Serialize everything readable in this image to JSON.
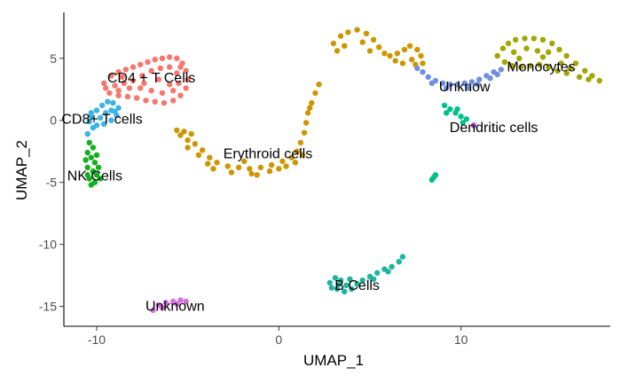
{
  "chart_data": {
    "type": "scatter",
    "title": "",
    "xlabel": "UMAP_1",
    "ylabel": "UMAP_2",
    "xlim": [
      -11.8,
      18.2
    ],
    "ylim": [
      -16.6,
      8.7
    ],
    "x_ticks": [
      -10,
      0,
      10
    ],
    "y_ticks": [
      5,
      0,
      -5,
      -10,
      -15
    ],
    "x_tick_labels": [
      "-10",
      "0",
      "10"
    ],
    "y_tick_labels": [
      "5",
      "0",
      "-5",
      "-10",
      "-15"
    ],
    "grid": false,
    "legend": "none",
    "clusters": [
      {
        "label": "CD4 + T Cells",
        "color": "#f8766d",
        "label_pos": [
          -7.0,
          3.4
        ],
        "points": [
          [
            -9.6,
            3.0
          ],
          [
            -9.2,
            3.6
          ],
          [
            -8.8,
            3.9
          ],
          [
            -8.4,
            4.1
          ],
          [
            -8.0,
            4.3
          ],
          [
            -7.6,
            4.5
          ],
          [
            -7.2,
            4.7
          ],
          [
            -6.8,
            4.9
          ],
          [
            -6.4,
            5.0
          ],
          [
            -6.0,
            5.1
          ],
          [
            -5.6,
            5.0
          ],
          [
            -5.3,
            4.6
          ],
          [
            -5.1,
            4.0
          ],
          [
            -5.0,
            3.3
          ],
          [
            -5.1,
            2.6
          ],
          [
            -5.4,
            2.0
          ],
          [
            -5.8,
            1.6
          ],
          [
            -6.3,
            1.4
          ],
          [
            -6.8,
            1.5
          ],
          [
            -7.3,
            1.6
          ],
          [
            -7.8,
            1.8
          ],
          [
            -8.3,
            1.9
          ],
          [
            -8.8,
            2.0
          ],
          [
            -9.3,
            2.2
          ],
          [
            -9.5,
            2.6
          ],
          [
            -9.0,
            2.8
          ],
          [
            -8.5,
            3.0
          ],
          [
            -8.0,
            3.2
          ],
          [
            -7.5,
            3.6
          ],
          [
            -7.0,
            4.0
          ],
          [
            -6.5,
            4.2
          ],
          [
            -6.0,
            4.3
          ],
          [
            -5.6,
            3.8
          ],
          [
            -5.5,
            3.0
          ],
          [
            -5.8,
            2.4
          ],
          [
            -6.4,
            2.2
          ],
          [
            -7.0,
            2.4
          ],
          [
            -7.6,
            2.6
          ],
          [
            -8.2,
            2.6
          ],
          [
            -8.8,
            2.4
          ],
          [
            -6.6,
            3.3
          ],
          [
            -7.4,
            3.0
          ],
          [
            -6.0,
            2.9
          ],
          [
            -5.4,
            4.3
          ],
          [
            -8.6,
            3.5
          ]
        ]
      },
      {
        "label": "CD8+ T cells",
        "color": "#39b4e6",
        "label_pos": [
          -9.7,
          0.1
        ],
        "points": [
          [
            -10.3,
            0.3
          ],
          [
            -10.0,
            0.8
          ],
          [
            -9.7,
            1.2
          ],
          [
            -9.4,
            1.5
          ],
          [
            -9.1,
            1.4
          ],
          [
            -8.8,
            1.0
          ],
          [
            -8.9,
            0.4
          ],
          [
            -9.2,
            0.0
          ],
          [
            -9.6,
            -0.3
          ],
          [
            -10.0,
            -0.4
          ],
          [
            -10.4,
            -0.1
          ],
          [
            -9.5,
            0.6
          ],
          [
            -9.2,
            0.8
          ],
          [
            -9.8,
            0.2
          ],
          [
            -10.2,
            -0.6
          ],
          [
            -10.5,
            -1.1
          ],
          [
            -10.3,
            0.6
          ],
          [
            -9.0,
            0.7
          ]
        ]
      },
      {
        "label": "NK Cells",
        "color": "#12b01e",
        "label_pos": [
          -10.1,
          -4.5
        ],
        "points": [
          [
            -10.4,
            -1.8
          ],
          [
            -10.2,
            -2.2
          ],
          [
            -10.5,
            -2.6
          ],
          [
            -10.3,
            -3.0
          ],
          [
            -10.1,
            -3.4
          ],
          [
            -10.5,
            -3.8
          ],
          [
            -10.2,
            -4.1
          ],
          [
            -10.0,
            -4.4
          ],
          [
            -10.4,
            -4.7
          ],
          [
            -10.1,
            -5.0
          ],
          [
            -10.3,
            -5.2
          ],
          [
            -9.9,
            -3.8
          ],
          [
            -10.6,
            -3.2
          ],
          [
            -10.0,
            -2.8
          ],
          [
            -10.5,
            -4.4
          ],
          [
            -9.8,
            -4.7
          ]
        ]
      },
      {
        "label": "Erythroid cells",
        "color": "#cd9600",
        "label_pos": [
          -0.6,
          -2.7
        ],
        "points": [
          [
            -5.4,
            -1.2
          ],
          [
            -5.0,
            -1.6
          ],
          [
            -4.6,
            -1.9
          ],
          [
            -4.2,
            -2.4
          ],
          [
            -3.8,
            -3.0
          ],
          [
            -3.4,
            -3.4
          ],
          [
            -2.8,
            -3.7
          ],
          [
            -2.2,
            -3.8
          ],
          [
            -1.6,
            -3.9
          ],
          [
            -1.0,
            -3.8
          ],
          [
            -0.4,
            -3.6
          ],
          [
            0.2,
            -3.3
          ],
          [
            0.7,
            -3.0
          ],
          [
            1.0,
            -2.5
          ],
          [
            1.2,
            -1.8
          ],
          [
            1.4,
            -1.0
          ],
          [
            1.5,
            -0.2
          ],
          [
            1.6,
            0.6
          ],
          [
            1.8,
            1.4
          ],
          [
            2.0,
            2.2
          ],
          [
            2.2,
            2.9
          ],
          [
            -4.4,
            -2.8
          ],
          [
            -3.6,
            -3.9
          ],
          [
            -2.6,
            -4.2
          ],
          [
            -1.5,
            -4.3
          ],
          [
            -0.5,
            -4.1
          ],
          [
            0.4,
            -3.7
          ],
          [
            0.9,
            -3.4
          ],
          [
            1.3,
            -2.8
          ],
          [
            -5.0,
            -2.2
          ],
          [
            -4.8,
            -1.1
          ],
          [
            -3.9,
            -3.5
          ],
          [
            -1.9,
            -3.3
          ],
          [
            0.0,
            -3.9
          ],
          [
            1.7,
            1.0
          ],
          [
            3.0,
            6.2
          ],
          [
            3.4,
            6.8
          ],
          [
            3.8,
            7.1
          ],
          [
            4.3,
            7.3
          ],
          [
            4.8,
            7.0
          ],
          [
            5.2,
            6.5
          ],
          [
            5.5,
            5.9
          ],
          [
            5.8,
            5.4
          ],
          [
            6.1,
            5.2
          ],
          [
            6.5,
            5.4
          ],
          [
            6.9,
            5.7
          ],
          [
            7.2,
            6.0
          ],
          [
            7.6,
            5.7
          ],
          [
            7.8,
            5.2
          ],
          [
            7.9,
            4.6
          ],
          [
            6.4,
            4.8
          ],
          [
            6.8,
            4.6
          ],
          [
            7.3,
            4.9
          ],
          [
            5.0,
            5.6
          ],
          [
            4.6,
            6.3
          ],
          [
            3.6,
            6.0
          ],
          [
            3.2,
            5.6
          ],
          [
            7.5,
            4.5
          ],
          [
            -5.6,
            -0.8
          ],
          [
            -5.2,
            -0.9
          ],
          [
            -1.2,
            -4.4
          ]
        ]
      },
      {
        "label": "Unknow",
        "color": "#6f8fe0",
        "label_pos": [
          10.2,
          2.7
        ],
        "points": [
          [
            7.6,
            4.2
          ],
          [
            7.9,
            3.9
          ],
          [
            8.2,
            3.5
          ],
          [
            8.6,
            3.2
          ],
          [
            9.0,
            3.0
          ],
          [
            9.4,
            2.9
          ],
          [
            9.8,
            2.9
          ],
          [
            10.2,
            3.0
          ],
          [
            10.6,
            3.1
          ],
          [
            11.0,
            3.3
          ],
          [
            11.4,
            3.6
          ],
          [
            11.8,
            3.9
          ],
          [
            12.2,
            4.1
          ],
          [
            11.6,
            3.4
          ],
          [
            10.4,
            2.6
          ],
          [
            9.2,
            2.6
          ],
          [
            8.4,
            3.0
          ],
          [
            10.9,
            2.9
          ],
          [
            12.0,
            3.7
          ]
        ]
      },
      {
        "label": "Monocytes",
        "color": "#a3a500",
        "label_pos": [
          14.4,
          4.3
        ],
        "points": [
          [
            12.0,
            5.2
          ],
          [
            12.3,
            5.8
          ],
          [
            12.6,
            6.2
          ],
          [
            13.0,
            6.5
          ],
          [
            13.5,
            6.6
          ],
          [
            14.0,
            6.6
          ],
          [
            14.5,
            6.5
          ],
          [
            15.0,
            6.2
          ],
          [
            15.4,
            5.7
          ],
          [
            15.8,
            5.2
          ],
          [
            16.3,
            4.6
          ],
          [
            16.8,
            4.0
          ],
          [
            17.2,
            3.6
          ],
          [
            17.6,
            3.2
          ],
          [
            12.4,
            4.7
          ],
          [
            12.8,
            4.4
          ],
          [
            13.3,
            4.3
          ],
          [
            13.8,
            4.4
          ],
          [
            14.3,
            4.5
          ],
          [
            14.8,
            4.3
          ],
          [
            15.3,
            4.0
          ],
          [
            15.8,
            3.8
          ],
          [
            16.5,
            3.5
          ],
          [
            12.9,
            5.5
          ],
          [
            13.6,
            5.8
          ],
          [
            14.2,
            5.6
          ],
          [
            14.8,
            5.5
          ],
          [
            13.2,
            5.0
          ],
          [
            14.5,
            5.1
          ],
          [
            15.5,
            4.6
          ],
          [
            16.0,
            4.2
          ],
          [
            17.0,
            3.3
          ]
        ]
      },
      {
        "label": "Dendritic cells",
        "color": "#00bf8b",
        "label_pos": [
          11.8,
          -0.6
        ],
        "points": [
          [
            9.1,
            1.2
          ],
          [
            9.4,
            0.9
          ],
          [
            9.7,
            0.6
          ],
          [
            10.0,
            0.3
          ],
          [
            10.3,
            0.1
          ],
          [
            9.2,
            0.6
          ],
          [
            9.8,
            0.9
          ],
          [
            10.1,
            -0.2
          ],
          [
            8.5,
            -4.6
          ],
          [
            8.6,
            -4.4
          ],
          [
            8.4,
            -4.8
          ]
        ]
      },
      {
        "label": "B Cells",
        "color": "#1fb49f",
        "label_pos": [
          4.3,
          -13.3
        ],
        "points": [
          [
            2.8,
            -13.1
          ],
          [
            3.1,
            -12.7
          ],
          [
            3.4,
            -12.9
          ],
          [
            3.7,
            -13.3
          ],
          [
            4.0,
            -13.6
          ],
          [
            3.6,
            -13.8
          ],
          [
            3.2,
            -13.6
          ],
          [
            2.9,
            -13.5
          ],
          [
            4.3,
            -13.2
          ],
          [
            4.6,
            -12.9
          ],
          [
            5.0,
            -12.6
          ],
          [
            5.4,
            -12.3
          ],
          [
            5.8,
            -12.0
          ],
          [
            6.2,
            -11.8
          ],
          [
            6.6,
            -11.4
          ],
          [
            6.8,
            -11.0
          ],
          [
            3.9,
            -12.8
          ],
          [
            3.3,
            -13.2
          ],
          [
            5.2,
            -12.8
          ],
          [
            6.0,
            -12.2
          ]
        ]
      },
      {
        "label": "Unknown",
        "color": "#d570e0",
        "label_pos": [
          -5.7,
          -15.0
        ],
        "points": [
          [
            -6.9,
            -15.3
          ],
          [
            -6.6,
            -14.9
          ],
          [
            -6.2,
            -14.7
          ],
          [
            -5.8,
            -14.6
          ],
          [
            -5.4,
            -14.5
          ],
          [
            -5.1,
            -14.6
          ],
          [
            -6.4,
            -15.1
          ],
          [
            -5.6,
            -14.8
          ]
        ]
      },
      {
        "label": "",
        "color": "#b14fd0",
        "points": [
          [
            10.7,
            -0.4
          ]
        ]
      }
    ]
  }
}
